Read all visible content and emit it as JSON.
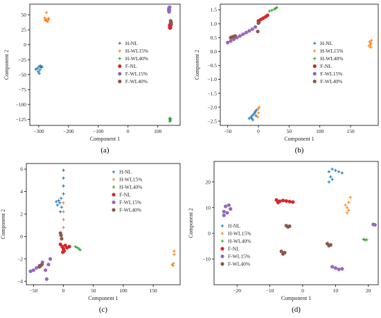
{
  "colors": {
    "H-NL": "#1f77b4",
    "H-WL15%": "#ff7f0e",
    "H-WL40%": "#2ca02c",
    "F-NL": "#d62728",
    "F-WL15%": "#9467bd",
    "F-WL40%": "#8c564b"
  },
  "chart_data": [
    {
      "type": "scatter",
      "caption": "(a)",
      "xlabel": "Component 1",
      "ylabel": "Component 2",
      "xlim": [
        -330,
        175
      ],
      "ylim": [
        -135,
        68
      ],
      "xticks": [
        -300,
        -200,
        -100,
        0,
        100
      ],
      "xtick_labels": [
        "−300",
        "−200",
        "−100",
        "0",
        "100"
      ],
      "yticks": [
        -125,
        -100,
        -75,
        -50,
        -25,
        0,
        25,
        50
      ],
      "ytick_labels": [
        "−125",
        "−100",
        "−75",
        "−50",
        "−25",
        "0",
        "25",
        "50"
      ],
      "legend_position": "center-right",
      "series": [
        {
          "name": "H-NL",
          "marker": "plus",
          "points": [
            [
              -305,
              -40
            ],
            [
              -300,
              -37
            ],
            [
              -296,
              -42
            ],
            [
              -292,
              -38
            ],
            [
              -302,
              -45
            ],
            [
              -298,
              -48
            ],
            [
              -289,
              -37
            ],
            [
              -295,
              -35
            ],
            [
              -310,
              -41
            ]
          ]
        },
        {
          "name": "H-WL15%",
          "marker": "plus",
          "points": [
            [
              -280,
              45
            ],
            [
              -276,
              42
            ],
            [
              -272,
              40
            ],
            [
              -268,
              44
            ],
            [
              -274,
              54
            ],
            [
              -270,
              39
            ],
            [
              -278,
              41
            ],
            [
              -266,
              43
            ]
          ]
        },
        {
          "name": "H-WL40%",
          "marker": "plus",
          "points": [
            [
              140,
              -123
            ],
            [
              141,
              -125
            ],
            [
              142,
              -127
            ],
            [
              140,
              -128
            ],
            [
              143,
              -124
            ]
          ]
        },
        {
          "name": "F-NL",
          "marker": "circle",
          "points": [
            [
              140,
              30
            ],
            [
              141,
              28
            ],
            [
              142,
              32
            ],
            [
              140,
              33
            ],
            [
              143,
              29
            ]
          ]
        },
        {
          "name": "F-WL15%",
          "marker": "circle",
          "points": [
            [
              137,
              60
            ],
            [
              138,
              62
            ],
            [
              137,
              57
            ],
            [
              139,
              58
            ],
            [
              138,
              55
            ],
            [
              140,
              63
            ]
          ]
        },
        {
          "name": "F-WL40%",
          "marker": "circle",
          "points": [
            [
              143,
              36
            ],
            [
              144,
              38
            ],
            [
              145,
              34
            ],
            [
              143,
              40
            ],
            [
              145,
              37
            ]
          ]
        }
      ]
    },
    {
      "type": "scatter",
      "caption": "(b)",
      "xlabel": "Component 1",
      "ylabel": "Component 2",
      "xlim": [
        -62,
        195
      ],
      "ylim": [
        -2.65,
        1.7
      ],
      "xticks": [
        -50,
        0,
        50,
        100,
        150
      ],
      "xtick_labels": [
        "−50",
        "0",
        "50",
        "100",
        "150"
      ],
      "yticks": [
        -2.5,
        -2.0,
        -1.5,
        -1.0,
        -0.5,
        0.0,
        0.5,
        1.0,
        1.5
      ],
      "ytick_labels": [
        "−2.5",
        "−2.0",
        "−1.5",
        "−1.0",
        "−0.5",
        "0.0",
        "0.5",
        "1.0",
        "1.5"
      ],
      "legend_position": "center-right",
      "series": [
        {
          "name": "H-NL",
          "marker": "plus",
          "points": [
            [
              -15,
              -2.4
            ],
            [
              -12,
              -2.35
            ],
            [
              -10,
              -2.3
            ],
            [
              -8,
              -2.25
            ],
            [
              -6,
              -2.2
            ],
            [
              -5,
              -2.15
            ],
            [
              -3,
              -2.1
            ],
            [
              -9,
              -2.45
            ],
            [
              -4,
              -2.3
            ],
            [
              -11,
              -2.4
            ]
          ]
        },
        {
          "name": "H-WL15%",
          "marker": "plus",
          "points": [
            [
              -1,
              -2.35
            ],
            [
              0,
              -2.2
            ],
            [
              0,
              -2.05
            ],
            [
              1,
              -2.0
            ],
            [
              180,
              0.2
            ],
            [
              182,
              0.25
            ],
            [
              183,
              0.3
            ],
            [
              181,
              0.35
            ],
            [
              184,
              0.4
            ],
            [
              183,
              0.15
            ]
          ]
        },
        {
          "name": "H-WL40%",
          "marker": "plus",
          "points": [
            [
              18,
              1.45
            ],
            [
              22,
              1.48
            ],
            [
              26,
              1.52
            ],
            [
              28,
              1.55
            ],
            [
              30,
              1.58
            ]
          ]
        },
        {
          "name": "F-NL",
          "marker": "circle",
          "points": [
            [
              0,
              1.1
            ],
            [
              4,
              1.15
            ],
            [
              8,
              1.2
            ],
            [
              12,
              1.25
            ],
            [
              15,
              1.3
            ]
          ]
        },
        {
          "name": "F-WL15%",
          "marker": "circle",
          "points": [
            [
              -50,
              0.32
            ],
            [
              -45,
              0.38
            ],
            [
              -40,
              0.44
            ],
            [
              -35,
              0.5
            ],
            [
              -30,
              0.56
            ],
            [
              -25,
              0.62
            ],
            [
              -20,
              0.68
            ],
            [
              -15,
              0.74
            ],
            [
              -10,
              0.8
            ],
            [
              -5,
              0.88
            ]
          ]
        },
        {
          "name": "F-WL40%",
          "marker": "circle",
          "points": [
            [
              -45,
              0.5
            ],
            [
              -42,
              0.53
            ],
            [
              -38,
              0.56
            ],
            [
              -1,
              0.72
            ],
            [
              0,
              1.02
            ],
            [
              1,
              1.05
            ]
          ]
        }
      ]
    },
    {
      "type": "scatter",
      "caption": "(c)",
      "xlabel": "Component 1",
      "ylabel": "Component 2",
      "xlim": [
        -62,
        195
      ],
      "ylim": [
        -4.3,
        6.5
      ],
      "xticks": [
        -50,
        0,
        50,
        100,
        150
      ],
      "xtick_labels": [
        "−50",
        "0",
        "50",
        "100",
        "150"
      ],
      "yticks": [
        -4,
        -2,
        0,
        2,
        4,
        6
      ],
      "ytick_labels": [
        "−4",
        "−2",
        "0",
        "2",
        "4",
        "6"
      ],
      "legend_position": "top-right",
      "series": [
        {
          "name": "H-NL",
          "marker": "plus",
          "points": [
            [
              -10,
              2.8
            ],
            [
              -8,
              3.2
            ],
            [
              -6,
              3.0
            ],
            [
              -4,
              3.4
            ],
            [
              -3,
              2.6
            ],
            [
              -5,
              2.2
            ],
            [
              -12,
              3.1
            ],
            [
              0,
              5.9
            ],
            [
              0,
              5.2
            ],
            [
              0,
              4.5
            ],
            [
              0,
              3.8
            ]
          ]
        },
        {
          "name": "H-WL15%",
          "marker": "plus",
          "points": [
            [
              0,
              1.5
            ],
            [
              0,
              2.2
            ],
            [
              0,
              3.0
            ],
            [
              0,
              0.8
            ],
            [
              183,
              -2.6
            ],
            [
              182,
              -2.5
            ],
            [
              184,
              -2.4
            ],
            [
              185,
              -1.3
            ],
            [
              185,
              -1.6
            ]
          ]
        },
        {
          "name": "H-WL40%",
          "marker": "plus",
          "points": [
            [
              20,
              -0.9
            ],
            [
              23,
              -1.0
            ],
            [
              26,
              -1.1
            ],
            [
              28,
              -1.2
            ]
          ]
        },
        {
          "name": "F-NL",
          "marker": "circle",
          "points": [
            [
              -5,
              -0.7
            ],
            [
              -2,
              -0.9
            ],
            [
              0,
              -1.1
            ],
            [
              3,
              -0.8
            ],
            [
              6,
              -1.0
            ],
            [
              10,
              -0.9
            ],
            [
              -1,
              -1.4
            ],
            [
              1,
              -1.3
            ]
          ]
        },
        {
          "name": "F-WL15%",
          "marker": "circle",
          "points": [
            [
              -55,
              -3.1
            ],
            [
              -50,
              -3.0
            ],
            [
              -45,
              -2.8
            ],
            [
              -40,
              -2.6
            ],
            [
              -35,
              -2.3
            ],
            [
              -30,
              -3.0
            ],
            [
              -28,
              -3.8
            ],
            [
              -25,
              -2.5
            ],
            [
              -22,
              -2.0
            ]
          ]
        },
        {
          "name": "F-WL40%",
          "marker": "circle",
          "points": [
            [
              -40,
              -2.7
            ],
            [
              -38,
              -2.6
            ],
            [
              -36,
              -2.5
            ],
            [
              -5,
              0.3
            ],
            [
              -4,
              0.1
            ],
            [
              -3,
              -0.2
            ]
          ]
        }
      ]
    },
    {
      "type": "scatter",
      "caption": "(d)",
      "xlabel": "Component 1",
      "ylabel": "Component 2",
      "xlim": [
        -27,
        23
      ],
      "ylim": [
        -20,
        28
      ],
      "xticks": [
        -20,
        -10,
        0,
        10,
        20
      ],
      "xtick_labels": [
        "−20",
        "−10",
        "0",
        "10",
        "20"
      ],
      "yticks": [
        -10,
        0,
        10,
        20
      ],
      "ytick_labels": [
        "−10",
        "0",
        "10",
        "20"
      ],
      "legend_position": "lower-left",
      "series": [
        {
          "name": "H-NL",
          "marker": "plus",
          "points": [
            [
              8,
              24
            ],
            [
              9,
              25
            ],
            [
              10,
              24.5
            ],
            [
              11,
              24
            ],
            [
              12,
              23.5
            ],
            [
              8.5,
              22
            ],
            [
              8,
              20
            ],
            [
              9,
              21
            ]
          ]
        },
        {
          "name": "H-WL15%",
          "marker": "plus",
          "points": [
            [
              13.5,
              10
            ],
            [
              14,
              12
            ],
            [
              14.5,
              14
            ],
            [
              13,
              11
            ],
            [
              13.5,
              8
            ],
            [
              14,
              9
            ]
          ]
        },
        {
          "name": "H-WL40%",
          "marker": "plus",
          "points": [
            [
              18.5,
              -2.3
            ],
            [
              19,
              -2.6
            ],
            [
              19.5,
              -2.5
            ]
          ]
        },
        {
          "name": "F-NL",
          "marker": "circle",
          "points": [
            [
              -8,
              13
            ],
            [
              -7,
              12.5
            ],
            [
              -6,
              12.8
            ],
            [
              -5,
              12.6
            ],
            [
              -4,
              12.4
            ],
            [
              -3,
              12.2
            ],
            [
              -7.5,
              12
            ]
          ]
        },
        {
          "name": "F-WL15%",
          "marker": "circle",
          "points": [
            [
              -24,
              7
            ],
            [
              -23,
              8
            ],
            [
              -22,
              9.5
            ],
            [
              -23.5,
              10.5
            ],
            [
              -22.5,
              11
            ],
            [
              -24,
              8.5
            ],
            [
              21.5,
              3.5
            ],
            [
              22,
              3.3
            ],
            [
              9,
              -13
            ],
            [
              10,
              -13.5
            ],
            [
              11,
              -14
            ],
            [
              12,
              -13.8
            ]
          ]
        },
        {
          "name": "F-WL40%",
          "marker": "circle",
          "points": [
            [
              -5,
              3
            ],
            [
              -4.5,
              2.5
            ],
            [
              -4,
              2.8
            ],
            [
              7.5,
              -4
            ],
            [
              8,
              -4.8
            ],
            [
              8.5,
              -4.5
            ],
            [
              -6.5,
              -7
            ],
            [
              -5.5,
              -7.5
            ],
            [
              -6,
              -8
            ]
          ]
        }
      ]
    }
  ]
}
